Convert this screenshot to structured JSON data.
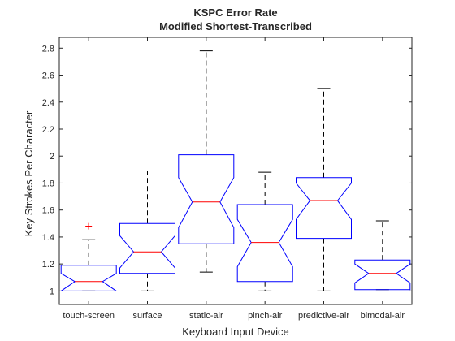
{
  "chart_data": {
    "type": "boxplot",
    "title": "KSPC Error Rate",
    "subtitle": "Modified Shortest-Transcribed",
    "xlabel": "Keyboard Input Device",
    "ylabel": "Key Strokes Per Character",
    "ylim": [
      0.9,
      2.88
    ],
    "yticks": [
      "1",
      "1.2",
      "1.4",
      "1.6",
      "1.8",
      "2",
      "2.2",
      "2.4",
      "2.6",
      "2.8"
    ],
    "notched": true,
    "grid": false,
    "box_color": "#0000ff",
    "median_color": "#ff0000",
    "outlier_color": "#ff0000",
    "whisker_color": "#000000",
    "boxes": [
      {
        "category": "touch-screen",
        "whisker_low": 1.0,
        "q1": 1.0,
        "median": 1.07,
        "q3": 1.19,
        "whisker_high": 1.38,
        "notch_low": 1.0,
        "notch_high": 1.13,
        "outliers": [
          1.48
        ]
      },
      {
        "category": "surface",
        "whisker_low": 1.0,
        "q1": 1.13,
        "median": 1.29,
        "q3": 1.5,
        "whisker_high": 1.89,
        "notch_low": 1.17,
        "notch_high": 1.41,
        "outliers": []
      },
      {
        "category": "static-air",
        "whisker_low": 1.14,
        "q1": 1.35,
        "median": 1.66,
        "q3": 2.01,
        "whisker_high": 2.78,
        "notch_low": 1.47,
        "notch_high": 1.84,
        "outliers": []
      },
      {
        "category": "pinch-air",
        "whisker_low": 1.0,
        "q1": 1.07,
        "median": 1.36,
        "q3": 1.64,
        "whisker_high": 1.88,
        "notch_low": 1.18,
        "notch_high": 1.53,
        "outliers": []
      },
      {
        "category": "predictive-air",
        "whisker_low": 1.0,
        "q1": 1.39,
        "median": 1.67,
        "q3": 1.84,
        "whisker_high": 2.5,
        "notch_low": 1.53,
        "notch_high": 1.8,
        "outliers": []
      },
      {
        "category": "bimodal-air",
        "whisker_low": 1.01,
        "q1": 1.01,
        "median": 1.13,
        "q3": 1.23,
        "whisker_high": 1.52,
        "notch_low": 1.06,
        "notch_high": 1.2,
        "outliers": []
      }
    ]
  }
}
